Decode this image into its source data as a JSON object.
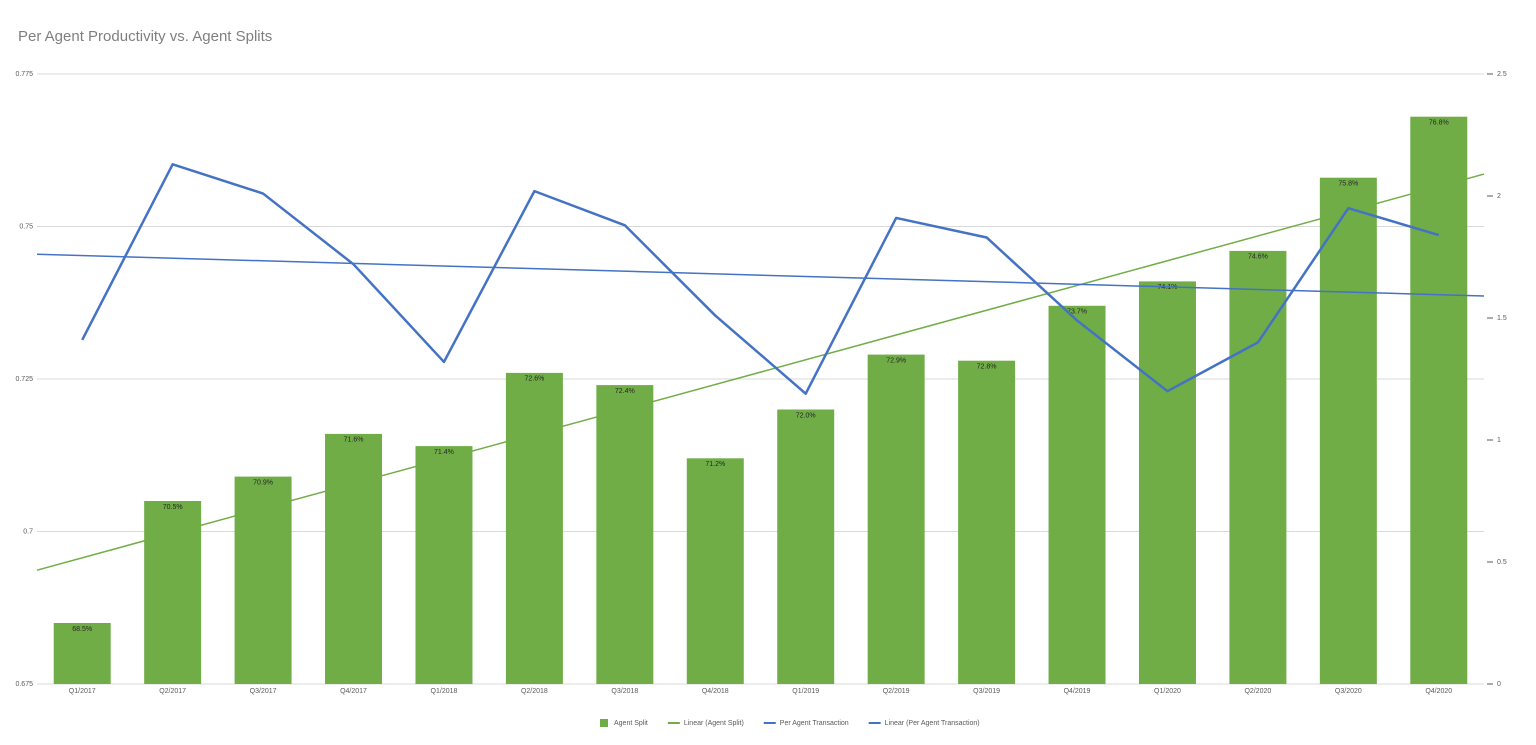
{
  "chart_data": {
    "type": "bar",
    "title": "Per Agent Productivity vs. Agent Splits",
    "categories": [
      "Q1/2017",
      "Q2/2017",
      "Q3/2017",
      "Q4/2017",
      "Q1/2018",
      "Q2/2018",
      "Q3/2018",
      "Q4/2018",
      "Q1/2019",
      "Q2/2019",
      "Q3/2019",
      "Q4/2019",
      "Q1/2020",
      "Q2/2020",
      "Q3/2020",
      "Q4/2020"
    ],
    "series": [
      {
        "name": "Agent Split",
        "type": "bar",
        "color": "#70ad47",
        "values": [
          0.685,
          0.705,
          0.709,
          0.716,
          0.714,
          0.726,
          0.724,
          0.712,
          0.72,
          0.729,
          0.728,
          0.737,
          0.741,
          0.746,
          0.758,
          0.768
        ],
        "value_labels": [
          "68.5%",
          "70.5%",
          "70.9%",
          "71.6%",
          "71.4%",
          "72.6%",
          "72.4%",
          "71.2%",
          "72.0%",
          "72.9%",
          "72.8%",
          "73.7%",
          "74.1%",
          "74.6%",
          "75.8%",
          "76.8%"
        ]
      },
      {
        "name": "Linear (Agent Split)",
        "type": "trendline",
        "color": "#70ad47"
      },
      {
        "name": "Per Agent Transaction",
        "type": "line",
        "color": "#4472c4",
        "axis": "y2",
        "values": [
          1.41,
          2.13,
          2.01,
          1.72,
          1.32,
          2.02,
          1.88,
          1.51,
          1.19,
          1.91,
          1.83,
          1.49,
          1.2,
          1.4,
          1.95,
          1.84
        ]
      },
      {
        "name": "Linear (Per Agent Transaction)",
        "type": "trendline",
        "color": "#4472c4",
        "axis": "y2"
      }
    ],
    "ylim": [
      0.675,
      0.775
    ],
    "yticks": [
      0.675,
      0.7,
      0.725,
      0.75,
      0.775
    ],
    "y2lim": [
      0,
      2.5
    ],
    "y2ticks": [
      0,
      0.5,
      1,
      1.5,
      2,
      2.5
    ],
    "grid": true,
    "legend": "bottom"
  }
}
